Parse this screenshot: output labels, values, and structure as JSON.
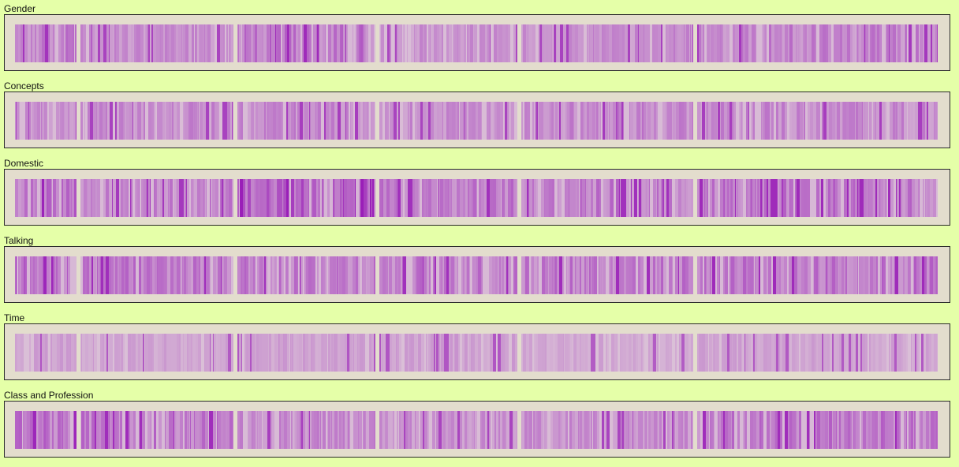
{
  "chart_data": {
    "type": "heatmap",
    "base_color": "#dcc4d8",
    "accent_color": "#9a1fb8",
    "background_color": "#e5ffa8",
    "panel_color": "#e3ddcd",
    "chapters": [
      {
        "words": 800
      },
      {
        "words": 2000
      },
      {
        "words": 1800
      },
      {
        "words": 1800
      },
      {
        "words": 2250
      },
      {
        "words": 3150
      }
    ],
    "tracks": [
      {
        "label": "Gender",
        "intensity": [
          0.42,
          0.33,
          0.48,
          0.3,
          0.34,
          0.4
        ]
      },
      {
        "label": "Concepts",
        "intensity": [
          0.32,
          0.34,
          0.36,
          0.32,
          0.38,
          0.36
        ]
      },
      {
        "label": "Domestic",
        "intensity": [
          0.52,
          0.4,
          0.62,
          0.44,
          0.44,
          0.48
        ]
      },
      {
        "label": "Talking",
        "intensity": [
          0.5,
          0.46,
          0.44,
          0.44,
          0.46,
          0.48
        ]
      },
      {
        "label": "Time",
        "intensity": [
          0.22,
          0.2,
          0.22,
          0.22,
          0.18,
          0.2
        ]
      },
      {
        "label": "Class and Profession",
        "intensity": [
          0.5,
          0.46,
          0.36,
          0.32,
          0.32,
          0.46
        ]
      }
    ]
  }
}
